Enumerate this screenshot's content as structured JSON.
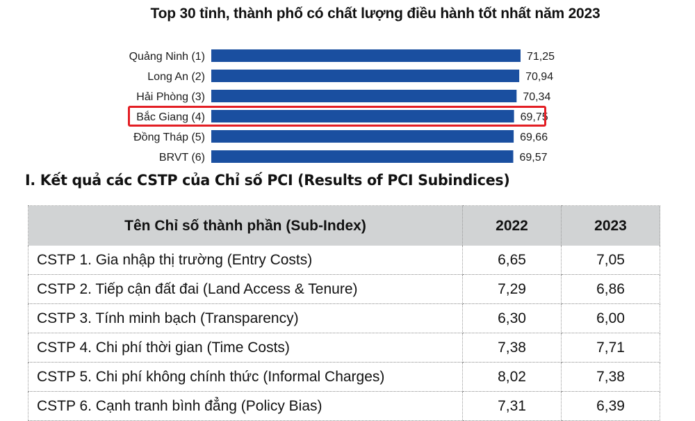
{
  "chart_data": {
    "type": "bar",
    "orientation": "horizontal",
    "title": "Top 30 tỉnh, thành phố có chất lượng điều hành tốt nhất năm 2023",
    "categories": [
      "Quảng Ninh (1)",
      "Long An (2)",
      "Hải Phòng (3)",
      "Bắc Giang (4)",
      "Đồng Tháp (5)",
      "BRVT (6)"
    ],
    "values": [
      71.25,
      70.94,
      70.34,
      69.75,
      69.66,
      69.57
    ],
    "value_labels": [
      "71,25",
      "70,94",
      "70,34",
      "69,75",
      "69,66",
      "69,57"
    ],
    "highlighted": "Bắc Giang (4)",
    "bar_color": "#1a4fa0",
    "highlight_color": "#e31e24",
    "grid": false
  },
  "section": {
    "title": "I. Kết quả các CSTP của Chỉ số PCI (Results of PCI Subindices)"
  },
  "table": {
    "headers": [
      "Tên Chỉ số thành phần (Sub-Index)",
      "2022",
      "2023"
    ],
    "rows": [
      [
        "CSTP 1. Gia nhập thị trường (Entry Costs)",
        "6,65",
        "7,05"
      ],
      [
        "CSTP 2. Tiếp cận đất đai (Land Access & Tenure)",
        "7,29",
        "6,86"
      ],
      [
        "CSTP 3. Tính minh bạch (Transparency)",
        "6,30",
        "6,00"
      ],
      [
        "CSTP 4. Chi phí thời gian (Time Costs)",
        "7,38",
        "7,71"
      ],
      [
        "CSTP 5. Chi phí không chính thức (Informal Charges)",
        "8,02",
        "7,38"
      ],
      [
        "CSTP 6. Cạnh tranh bình đẳng (Policy Bias)",
        "7,31",
        "6,39"
      ]
    ],
    "header_bg": "#d1d3d4"
  }
}
